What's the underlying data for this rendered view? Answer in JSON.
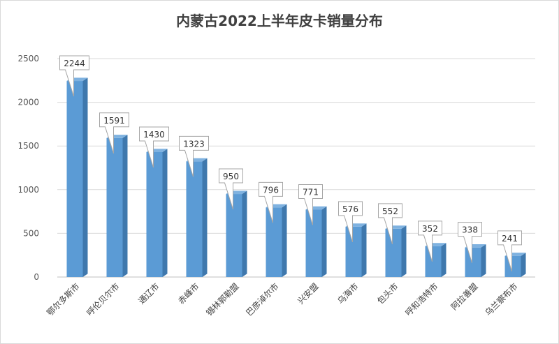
{
  "chart_data": {
    "type": "bar",
    "title": "内蒙古2022上半年皮卡销量分布",
    "categories": [
      "鄂尔多斯市",
      "呼伦贝尔市",
      "通辽市",
      "赤峰市",
      "锡林郭勒盟",
      "巴彦淖尔市",
      "兴安盟",
      "乌海市",
      "包头市",
      "呼和浩特市",
      "阿拉善盟",
      "乌兰察布市"
    ],
    "values": [
      2244,
      1591,
      1430,
      1323,
      950,
      796,
      771,
      576,
      552,
      352,
      338,
      241
    ],
    "yticks": [
      0,
      500,
      1000,
      1500,
      2000,
      2500
    ],
    "ylim": [
      0,
      2500
    ],
    "grid": true,
    "legend": "none",
    "data_labels": true,
    "bar_color": "#5b9bd5",
    "bar_side_color": "#3f78ad",
    "bar_top_color": "#7fb2e0"
  }
}
